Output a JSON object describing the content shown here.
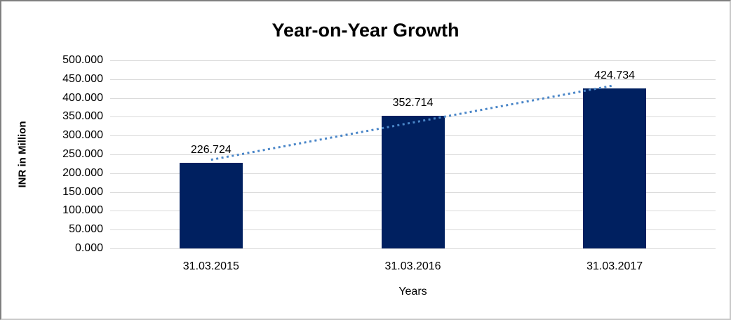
{
  "chart_data": {
    "type": "bar",
    "title": "Year-on-Year Growth",
    "xlabel": "Years",
    "ylabel": "INR in Million",
    "categories": [
      "31.03.2015",
      "31.03.2016",
      "31.03.2017"
    ],
    "values": [
      226.724,
      352.714,
      424.734
    ],
    "value_labels": [
      "226.724",
      "352.714",
      "424.734"
    ],
    "ylim": [
      0,
      500
    ],
    "ytick_step": 50,
    "ytick_labels": [
      "0.000",
      "50.000",
      "100.000",
      "150.000",
      "200.000",
      "250.000",
      "300.000",
      "350.000",
      "400.000",
      "450.000",
      "500.000"
    ],
    "grid": "horizontal-only",
    "legend": "none",
    "colors": {
      "bar": "#002060",
      "trendline": "#4a86c8",
      "gridline": "#d9d9d9",
      "text": "#000000",
      "background": "#ffffff"
    },
    "trendline": {
      "type": "linear",
      "style": "dotted"
    }
  }
}
